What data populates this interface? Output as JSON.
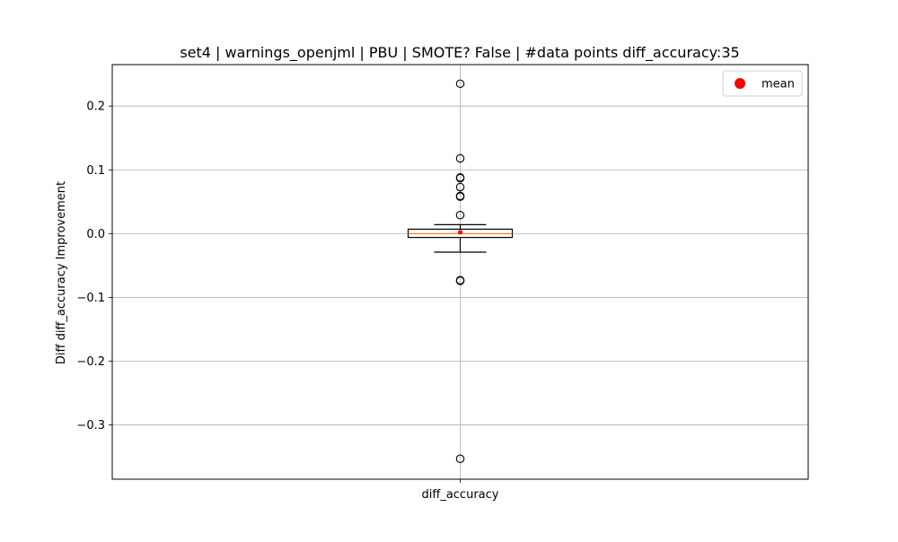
{
  "chart_data": {
    "type": "box",
    "title": "set4 | warnings_openjml | PBU | SMOTE? False | #data points diff_accuracy:35",
    "xlabel": "",
    "ylabel": "Diff diff_accuracy Improvement",
    "categories": [
      "diff_accuracy"
    ],
    "ylim": [
      -0.385,
      0.265
    ],
    "yticks": [
      0.2,
      0.1,
      0.0,
      -0.1,
      -0.2,
      -0.3
    ],
    "ytick_labels": [
      "0.2",
      "0.1",
      "0.0",
      "−0.1",
      "−0.2",
      "−0.3"
    ],
    "grid": true,
    "legend": {
      "position": "top-right",
      "entries": [
        {
          "label": "mean",
          "color": "#ff0000",
          "marker": "circle"
        }
      ]
    },
    "series": [
      {
        "category": "diff_accuracy",
        "q1": -0.006,
        "median": 0.0,
        "q3": 0.007,
        "whisker_low": -0.029,
        "whisker_high": 0.014,
        "mean": 0.002,
        "outliers": [
          0.235,
          0.118,
          0.088,
          0.087,
          0.073,
          0.059,
          0.058,
          0.029,
          -0.073,
          -0.074,
          -0.353
        ]
      }
    ],
    "colors": {
      "box": "#000000",
      "median": "#ff7f0e",
      "mean": "#ff0000",
      "grid": "#b0b0b0"
    }
  }
}
